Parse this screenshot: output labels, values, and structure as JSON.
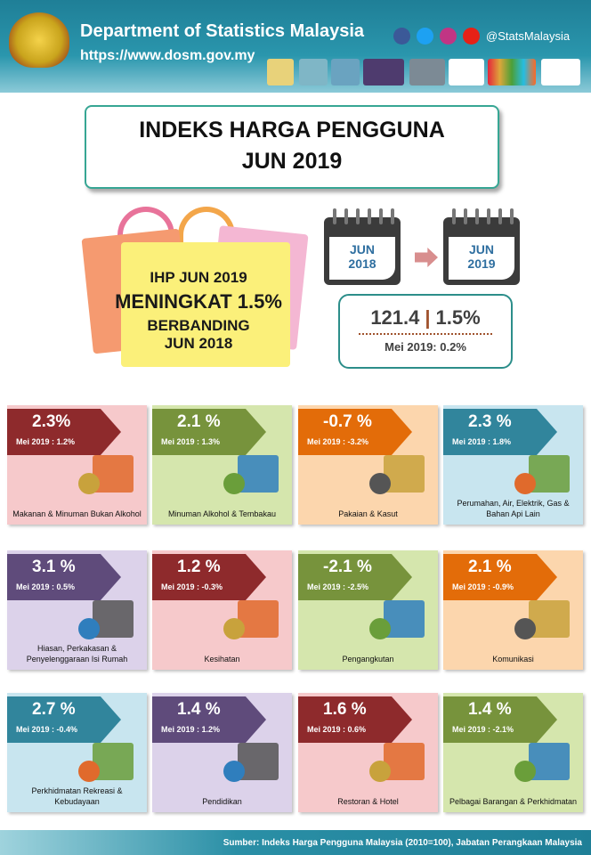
{
  "header": {
    "title": "Department of Statistics Malaysia",
    "url": "https://www.dosm.gov.my",
    "social": "@StatsMalaysia"
  },
  "main_title": {
    "line1": "INDEKS HARGA PENGGUNA",
    "line2": "JUN 2019"
  },
  "highlight": {
    "line1": "IHP JUN 2019",
    "line2": "MENINGKAT 1.5%",
    "line3": "BERBANDING",
    "line4": "JUN 2018"
  },
  "calendars": [
    {
      "month": "JUN",
      "year": "2018"
    },
    {
      "month": "JUN",
      "year": "2019"
    }
  ],
  "index_box": {
    "index": "121.4",
    "change": "1.5%",
    "previous": "Mei 2019: 0.2%"
  },
  "cards": [
    {
      "value": "2.3%",
      "previous": "Mei 2019 : 1.2%",
      "label": "Makanan & Minuman Bukan Alkohol"
    },
    {
      "value": "2.1 %",
      "previous": "Mei 2019 : 1.3%",
      "label": "Minuman Alkohol & Tembakau"
    },
    {
      "value": "-0.7 %",
      "previous": "Mei 2019 : -3.2%",
      "label": "Pakaian & Kasut"
    },
    {
      "value": "2.3 %",
      "previous": "Mei 2019 : 1.8%",
      "label": "Perumahan, Air, Elektrik, Gas & Bahan Api Lain"
    },
    {
      "value": "3.1 %",
      "previous": "Mei 2019 : 0.5%",
      "label": "Hiasan, Perkakasan & Penyelenggaraan Isi Rumah"
    },
    {
      "value": "1.2 %",
      "previous": "Mei 2019 : -0.3%",
      "label": "Kesihatan"
    },
    {
      "value": "-2.1 %",
      "previous": "Mei 2019 : -2.5%",
      "label": "Pengangkutan"
    },
    {
      "value": "2.1 %",
      "previous": "Mei 2019 : -0.9%",
      "label": "Komunikasi"
    },
    {
      "value": "2.7 %",
      "previous": "Mei 2019 : -0.4%",
      "label": "Perkhidmatan Rekreasi & Kebudayaan"
    },
    {
      "value": "1.4 %",
      "previous": "Mei 2019 : 1.2%",
      "label": "Pendidikan"
    },
    {
      "value": "1.6 %",
      "previous": "Mei 2019 : 0.6%",
      "label": "Restoran & Hotel"
    },
    {
      "value": "1.4 %",
      "previous": "Mei 2019 : -2.1%",
      "label": "Pelbagai Barangan & Perkhidmatan"
    }
  ],
  "footer": {
    "source": "Sumber: Indeks Harga Pengguna Malaysia (2010=100), Jabatan Perangkaan Malaysia"
  }
}
